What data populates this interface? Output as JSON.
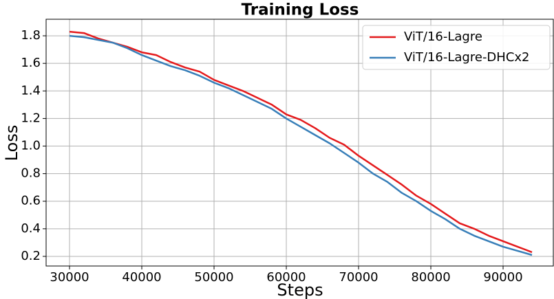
{
  "chart_data": {
    "type": "line",
    "title": "Training Loss",
    "xlabel": "Steps",
    "ylabel": "Loss",
    "x": [
      30000,
      32000,
      34000,
      36000,
      38000,
      40000,
      42000,
      44000,
      46000,
      48000,
      50000,
      52000,
      54000,
      56000,
      58000,
      60000,
      62000,
      64000,
      66000,
      68000,
      70000,
      72000,
      74000,
      76000,
      78000,
      80000,
      82000,
      84000,
      86000,
      88000,
      90000,
      92000,
      94000
    ],
    "series": [
      {
        "name": "ViT/16-Lagre",
        "color": "#e41a1c",
        "values": [
          1.83,
          1.82,
          1.78,
          1.75,
          1.72,
          1.68,
          1.66,
          1.61,
          1.57,
          1.54,
          1.48,
          1.44,
          1.4,
          1.35,
          1.3,
          1.23,
          1.19,
          1.13,
          1.06,
          1.01,
          0.93,
          0.86,
          0.79,
          0.72,
          0.64,
          0.58,
          0.51,
          0.44,
          0.4,
          0.35,
          0.31,
          0.27,
          0.23
        ]
      },
      {
        "name": "ViT/16-Lagre-DHCx2",
        "color": "#377eb8",
        "values": [
          1.8,
          1.79,
          1.77,
          1.75,
          1.71,
          1.66,
          1.62,
          1.58,
          1.55,
          1.51,
          1.46,
          1.42,
          1.37,
          1.32,
          1.27,
          1.2,
          1.14,
          1.08,
          1.02,
          0.95,
          0.88,
          0.8,
          0.74,
          0.66,
          0.6,
          0.53,
          0.47,
          0.4,
          0.35,
          0.31,
          0.27,
          0.24,
          0.21
        ]
      }
    ],
    "xlim": [
      26760,
      96950
    ],
    "ylim": [
      0.13,
      1.92
    ],
    "xticks": [
      30000,
      40000,
      50000,
      60000,
      70000,
      80000,
      90000
    ],
    "yticks": [
      0.2,
      0.4,
      0.6,
      0.8,
      {
        "value": 1,
        "label": "1.0"
      },
      1.2,
      1.4,
      1.6,
      1.8
    ],
    "grid": true,
    "legend": "upper right"
  }
}
